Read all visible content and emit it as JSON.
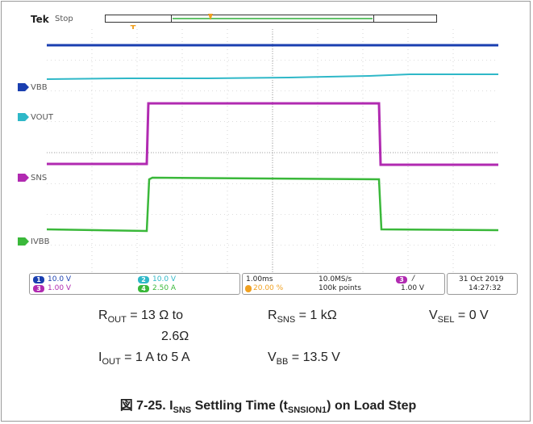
{
  "scope": {
    "brand": "Tek",
    "status": "Stop",
    "trigger_marker": "T",
    "channel_labels": {
      "ch1": "VBB",
      "ch2": "VOUT",
      "ch3": "SNS",
      "ch4": "IVBB"
    },
    "readout": {
      "ch1_num": "1",
      "ch1_scale": "10.0 V",
      "ch2_num": "2",
      "ch2_scale": "10.0 V",
      "ch3_num": "3",
      "ch3_scale": "1.00 V",
      "ch4_num": "4",
      "ch4_scale": "2.50 A",
      "timebase": "1.00ms",
      "trigger_pos": "20.00 %",
      "sample_rate": "10.0MS/s",
      "record_length": "100k points",
      "trig_src_num": "3",
      "trig_slope": "/",
      "trig_level": "1.00 V",
      "date": "31 Oct  2019",
      "time": "14:27:32"
    },
    "colors": {
      "ch1": "#1a3fb0",
      "ch2": "#2fb8c8",
      "ch3": "#b12ab1",
      "ch4": "#3ab83a",
      "trigger": "#f0a020"
    }
  },
  "conditions": {
    "rout_label": "R",
    "rout_sub": "OUT",
    "rout_value_line1": " = 13 Ω to",
    "rout_value_line2": "2.6Ω",
    "rsns_label": "R",
    "rsns_sub": "SNS",
    "rsns_value": " = 1 kΩ",
    "vsel_label": "V",
    "vsel_sub": "SEL",
    "vsel_value": " = 0 V",
    "iout_label": "I",
    "iout_sub": "OUT",
    "iout_value": " = 1 A to 5 A",
    "vbb_label": "V",
    "vbb_sub": "BB",
    "vbb_value": " = 13.5 V"
  },
  "caption": {
    "prefix": "図 7-25. I",
    "sub1": "SNS",
    "mid": " Settling Time (t",
    "sub2": "SNSION1",
    "suffix": ") on Load Step"
  }
}
